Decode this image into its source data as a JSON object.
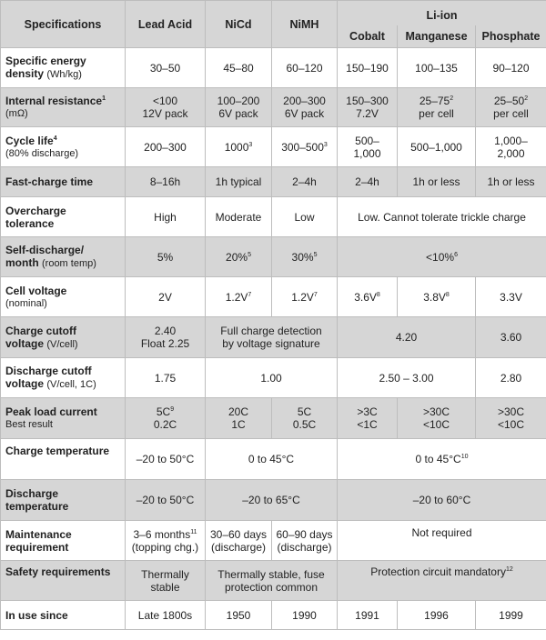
{
  "header": {
    "specifications": "Specifications",
    "lead_acid": "Lead Acid",
    "nicd": "NiCd",
    "nimh": "NiMH",
    "li_ion": "Li-ion",
    "cobalt": "Cobalt",
    "manganese": "Manganese",
    "phosphate": "Phosphate"
  },
  "rows": {
    "energy": {
      "label": "Specific energy",
      "sub_bold": "density",
      "sub": "(Wh/kg)",
      "lead": "30–50",
      "nicd": "45–80",
      "nimh": "60–120",
      "cobalt": "150–190",
      "manganese": "100–135",
      "phosphate": "90–120"
    },
    "resistance": {
      "label": "Internal resistance",
      "sup": "1",
      "sub": "(mΩ)",
      "lead_1": "<100",
      "lead_2": "12V pack",
      "nicd_1": "100–200",
      "nicd_2": "6V pack",
      "nimh_1": "200–300",
      "nimh_2": "6V pack",
      "cobalt_1": "150–300",
      "cobalt_2": "7.2V",
      "manganese_1": "25–75",
      "manganese_sup": "2",
      "manganese_2": "per cell",
      "phosphate_1": "25–50",
      "phosphate_sup": "2",
      "phosphate_2": "per cell"
    },
    "cycle": {
      "label": "Cycle life",
      "sup": "4",
      "sub": "(80% discharge)",
      "lead": "200–300",
      "nicd": "1000",
      "nicd_sup": "3",
      "nimh": "300–500",
      "nimh_sup": "3",
      "cobalt_1": "500–",
      "cobalt_2": "1,000",
      "manganese": "500–1,000",
      "phosphate_1": "1,000–",
      "phosphate_2": "2,000"
    },
    "fastcharge": {
      "label": "Fast-charge time",
      "lead": "8–16h",
      "nicd": "1h typical",
      "nimh": "2–4h",
      "cobalt": "2–4h",
      "manganese": "1h or less",
      "phosphate": "1h or less"
    },
    "overcharge": {
      "label_1": "Overcharge",
      "label_2": "tolerance",
      "lead": "High",
      "nicd": "Moderate",
      "nimh": "Low",
      "liion": "Low. Cannot tolerate trickle charge"
    },
    "selfdischarge": {
      "label_1": "Self-discharge/",
      "label_2": "month",
      "sub": "(room temp)",
      "lead": "5%",
      "nicd": "20%",
      "nicd_sup": "5",
      "nimh": "30%",
      "nimh_sup": "5",
      "liion": "<10%",
      "liion_sup": "6"
    },
    "cellvoltage": {
      "label": "Cell voltage",
      "sub": "(nominal)",
      "lead": "2V",
      "nicd": "1.2V",
      "nicd_sup": "7",
      "nimh": "1.2V",
      "nimh_sup": "7",
      "cobalt": "3.6V",
      "cobalt_sup": "8",
      "manganese": "3.8V",
      "manganese_sup": "8",
      "phosphate": "3.3V"
    },
    "chargecutoff": {
      "label_1": "Charge cutoff",
      "label_2": "voltage",
      "sub": "(V/cell)",
      "lead_1": "2.40",
      "lead_2": "Float 2.25",
      "ni_1": "Full charge detection",
      "ni_2": "by voltage signature",
      "coman": "4.20",
      "phosphate": "3.60"
    },
    "dischargecutoff": {
      "label_1": "Discharge cutoff",
      "label_2": "voltage",
      "sub": "(V/cell, 1C)",
      "lead": "1.75",
      "ni": "1.00",
      "coman": "2.50 – 3.00",
      "phosphate": "2.80"
    },
    "peakload": {
      "label_1": "Peak load current",
      "label_2": "Best result",
      "lead_1": "5C",
      "lead_sup": "9",
      "lead_2": "0.2C",
      "nicd_1": "20C",
      "nicd_2": "1C",
      "nimh_1": "5C",
      "nimh_2": "0.5C",
      "cobalt_1": ">3C",
      "cobalt_2": "<1C",
      "manganese_1": ">30C",
      "manganese_2": "<10C",
      "phosphate_1": ">30C",
      "phosphate_2": "<10C"
    },
    "chargetemp": {
      "label": "Charge temperature",
      "lead": "–20 to 50°C",
      "ni": "0 to 45°C",
      "liion": "0 to 45°C",
      "liion_sup": "10"
    },
    "dischargetemp": {
      "label_1": "Discharge",
      "label_2": "temperature",
      "lead": "–20 to 50°C",
      "ni": "–20 to 65°C",
      "liion": "–20 to 60°C"
    },
    "maintenance": {
      "label_1": "Maintenance",
      "label_2": "requirement",
      "lead_1": "3–6 months",
      "lead_sup": "11",
      "lead_2": "(topping chg.)",
      "nicd_1": "30–60 days",
      "nicd_2": "(discharge)",
      "nimh_1": "60–90 days",
      "nimh_2": "(discharge)",
      "liion": "Not required"
    },
    "safety": {
      "label": "Safety requirements",
      "lead_1": "Thermally",
      "lead_2": "stable",
      "ni_1": "Thermally stable, fuse",
      "ni_2": "protection common",
      "liion": "Protection circuit mandatory",
      "liion_sup": "12"
    },
    "inuse": {
      "label": "In use since",
      "lead": "Late 1800s",
      "nicd": "1950",
      "nimh": "1990",
      "cobalt": "1991",
      "manganese": "1996",
      "phosphate": "1999"
    }
  }
}
